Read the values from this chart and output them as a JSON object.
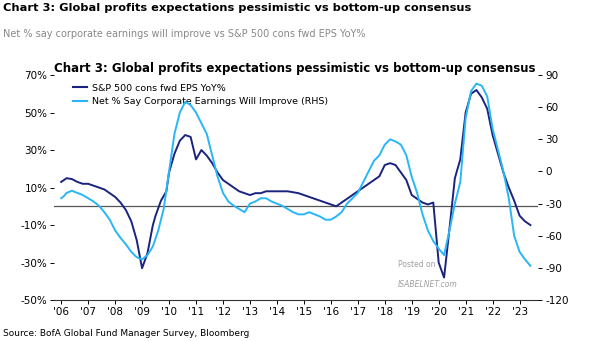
{
  "title": "Chart 3: Global profits expectations pessimistic vs bottom-up consensus",
  "subtitle": "Net % say corporate earnings will improve vs S&P 500 cons fwd EPS YoY%",
  "source": "Source: BofA Global Fund Manager Survey, Bloomberg",
  "watermark_line1": "Posted on",
  "watermark_line2": "ISABELNET.com",
  "left_ylim": [
    -50,
    70
  ],
  "right_ylim": [
    -120,
    90
  ],
  "left_yticks": [
    -50,
    -30,
    -10,
    10,
    30,
    50,
    70
  ],
  "right_yticks": [
    -120,
    -90,
    -60,
    -30,
    0,
    30,
    60,
    90
  ],
  "left_ytick_labels": [
    "-50%",
    "-30%",
    "-10%",
    "10%",
    "30%",
    "50%",
    "70%"
  ],
  "right_ytick_labels": [
    "-120",
    "-90",
    "-60",
    "-30",
    "0",
    "30",
    "60",
    "90"
  ],
  "xtick_labels": [
    "'06",
    "'07",
    "'08",
    "'09",
    "'10",
    "'11",
    "'12",
    "'13",
    "'14",
    "'15",
    "'16",
    "'17",
    "'18",
    "'19",
    "'20",
    "'21",
    "'22",
    "'23"
  ],
  "color_eps": "#1a237e",
  "color_net": "#29b6f6",
  "legend_eps": "S&P 500 cons fwd EPS YoY%",
  "legend_net": "Net % Say Corporate Earnings Will Improve (RHS)",
  "hline_y": 0,
  "eps_x": [
    2006.0,
    2006.1,
    2006.2,
    2006.4,
    2006.6,
    2006.8,
    2007.0,
    2007.2,
    2007.4,
    2007.6,
    2007.8,
    2008.0,
    2008.2,
    2008.4,
    2008.6,
    2008.8,
    2009.0,
    2009.2,
    2009.4,
    2009.5,
    2009.7,
    2009.9,
    2010.0,
    2010.2,
    2010.4,
    2010.6,
    2010.8,
    2011.0,
    2011.2,
    2011.4,
    2011.6,
    2011.8,
    2012.0,
    2012.2,
    2012.4,
    2012.6,
    2012.8,
    2013.0,
    2013.2,
    2013.4,
    2013.6,
    2013.8,
    2014.0,
    2014.2,
    2014.4,
    2014.6,
    2014.8,
    2015.0,
    2015.2,
    2015.4,
    2015.6,
    2015.8,
    2016.0,
    2016.2,
    2016.4,
    2016.6,
    2016.8,
    2017.0,
    2017.2,
    2017.4,
    2017.6,
    2017.8,
    2018.0,
    2018.2,
    2018.4,
    2018.6,
    2018.8,
    2019.0,
    2019.2,
    2019.4,
    2019.6,
    2019.8,
    2020.0,
    2020.2,
    2020.4,
    2020.6,
    2020.8,
    2021.0,
    2021.2,
    2021.4,
    2021.6,
    2021.8,
    2022.0,
    2022.2,
    2022.4,
    2022.6,
    2022.8,
    2023.0,
    2023.2,
    2023.4
  ],
  "eps_y": [
    13,
    14,
    15,
    14.5,
    13,
    12,
    12,
    11,
    10,
    9,
    7,
    5,
    2,
    -2,
    -8,
    -18,
    -33,
    -25,
    -10,
    -5,
    3,
    8,
    18,
    28,
    35,
    38,
    37,
    25,
    30,
    27,
    23,
    18,
    14,
    12,
    10,
    8,
    7,
    6,
    7,
    7,
    8,
    8,
    8,
    8,
    8,
    7.5,
    7,
    6,
    5,
    4,
    3,
    2,
    1,
    0,
    2,
    4,
    6,
    8,
    10,
    12,
    14,
    16,
    22,
    23,
    22,
    18,
    14,
    6,
    4,
    2,
    1,
    2,
    -30,
    -38,
    -12,
    15,
    25,
    50,
    60,
    62,
    58,
    52,
    38,
    28,
    18,
    10,
    3,
    -5,
    -8,
    -10
  ],
  "net_x": [
    2006.0,
    2006.1,
    2006.2,
    2006.4,
    2006.6,
    2006.8,
    2007.0,
    2007.2,
    2007.4,
    2007.6,
    2007.8,
    2008.0,
    2008.2,
    2008.4,
    2008.6,
    2008.8,
    2009.0,
    2009.2,
    2009.4,
    2009.6,
    2009.8,
    2010.0,
    2010.2,
    2010.4,
    2010.6,
    2010.8,
    2011.0,
    2011.2,
    2011.4,
    2011.6,
    2011.8,
    2012.0,
    2012.2,
    2012.4,
    2012.6,
    2012.8,
    2013.0,
    2013.2,
    2013.4,
    2013.6,
    2013.8,
    2014.0,
    2014.2,
    2014.4,
    2014.6,
    2014.8,
    2015.0,
    2015.2,
    2015.4,
    2015.6,
    2015.8,
    2016.0,
    2016.2,
    2016.4,
    2016.6,
    2016.8,
    2017.0,
    2017.2,
    2017.4,
    2017.6,
    2017.8,
    2018.0,
    2018.2,
    2018.4,
    2018.6,
    2018.8,
    2019.0,
    2019.2,
    2019.4,
    2019.6,
    2019.8,
    2020.0,
    2020.2,
    2020.4,
    2020.6,
    2020.8,
    2021.0,
    2021.2,
    2021.4,
    2021.6,
    2021.8,
    2022.0,
    2022.2,
    2022.4,
    2022.6,
    2022.8,
    2023.0,
    2023.2,
    2023.4
  ],
  "net_y": [
    -25,
    -23,
    -20,
    -18,
    -20,
    -22,
    -25,
    -28,
    -32,
    -38,
    -45,
    -55,
    -62,
    -68,
    -75,
    -80,
    -82,
    -78,
    -70,
    -55,
    -35,
    0,
    35,
    55,
    65,
    62,
    55,
    45,
    35,
    15,
    -5,
    -20,
    -28,
    -32,
    -35,
    -38,
    -30,
    -28,
    -25,
    -25,
    -28,
    -30,
    -32,
    -35,
    -38,
    -40,
    -40,
    -38,
    -40,
    -42,
    -45,
    -45,
    -42,
    -38,
    -30,
    -25,
    -20,
    -10,
    0,
    10,
    15,
    25,
    30,
    28,
    25,
    15,
    -5,
    -20,
    -40,
    -55,
    -65,
    -72,
    -78,
    -55,
    -30,
    -10,
    50,
    75,
    82,
    80,
    70,
    40,
    20,
    0,
    -25,
    -60,
    -75,
    -82,
    -88
  ]
}
